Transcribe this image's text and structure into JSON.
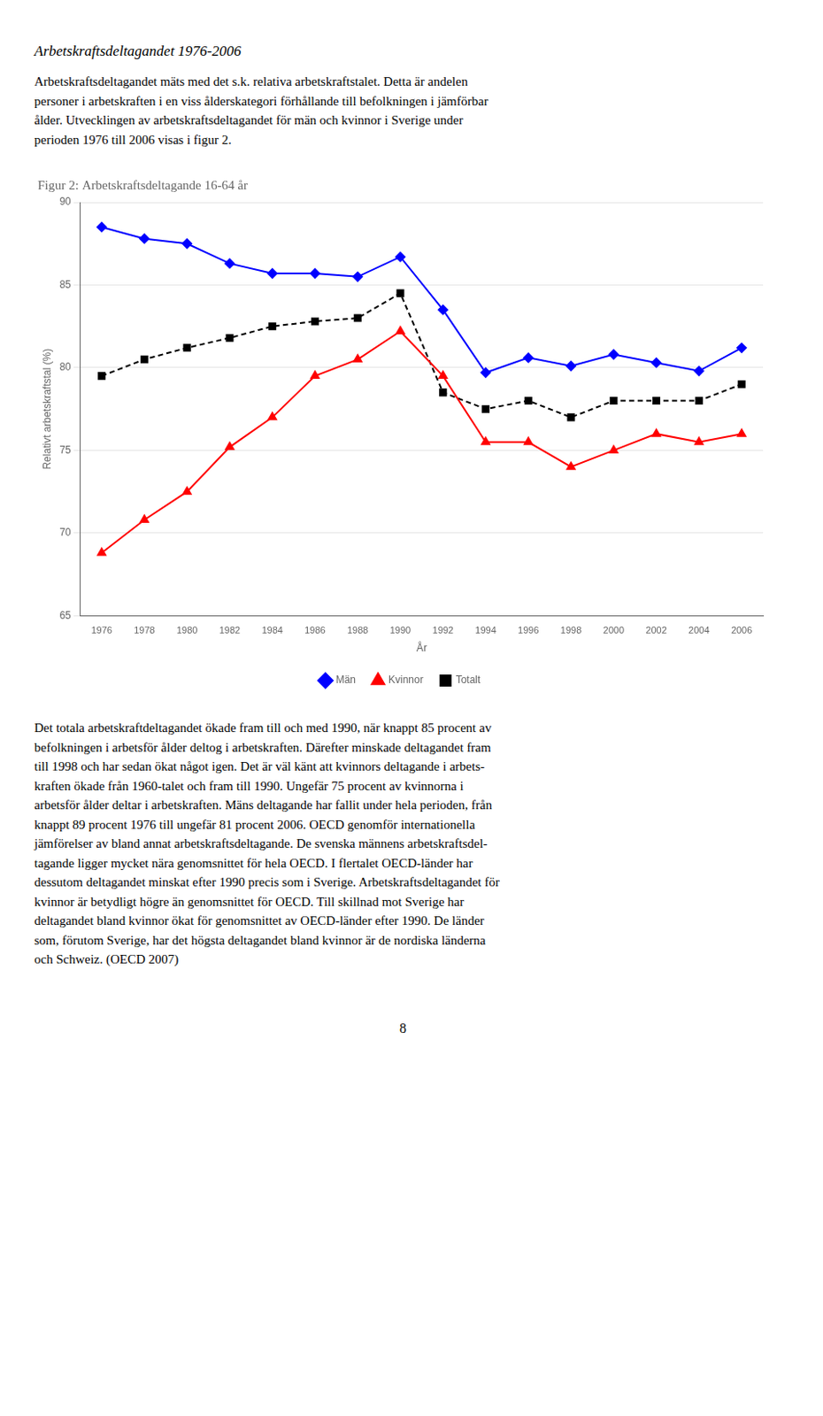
{
  "chart_data": {
    "type": "line",
    "title": "Figur 2: Arbetskraftsdeltagande 16-64 år",
    "xlabel": "År",
    "ylabel": "Relativt arbetskraftstal (%)",
    "x": [
      1976,
      1978,
      1980,
      1982,
      1984,
      1986,
      1988,
      1990,
      1992,
      1994,
      1996,
      1998,
      2000,
      2002,
      2004,
      2006
    ],
    "xlim": [
      1975,
      2007
    ],
    "xticks": [
      1976,
      1978,
      1980,
      1982,
      1984,
      1986,
      1988,
      1990,
      1992,
      1994,
      1996,
      1998,
      2000,
      2002,
      2004,
      2006
    ],
    "ylim": [
      65,
      90
    ],
    "yticks": [
      65,
      70,
      75,
      80,
      85,
      90
    ],
    "grid": "y",
    "legend": "bottom",
    "series": [
      {
        "name": "Män",
        "color": "blue",
        "marker": "diamond",
        "line_style": "solid",
        "values": [
          88.5,
          87.8,
          87.5,
          86.3,
          85.7,
          85.7,
          85.5,
          86.7,
          83.5,
          79.7,
          80.6,
          80.1,
          80.8,
          80.3,
          79.8,
          81.2
        ]
      },
      {
        "name": "Kvinnor",
        "color": "red",
        "marker": "triangle",
        "line_style": "solid",
        "values": [
          68.8,
          70.8,
          72.5,
          75.2,
          77.0,
          79.5,
          80.5,
          82.2,
          79.5,
          75.5,
          75.5,
          74.0,
          75.0,
          76.0,
          75.5,
          76.0
        ]
      },
      {
        "name": "Totalt",
        "color": "black",
        "marker": "square",
        "line_style": "dashed",
        "values": [
          79.5,
          80.5,
          81.2,
          81.8,
          82.5,
          82.8,
          83.0,
          84.5,
          78.5,
          77.5,
          78.0,
          77.0,
          78.0,
          78.0,
          78.0,
          79.0
        ]
      }
    ],
    "annotations": [
      "Arbetskraftsdeltagandet 1976-2006",
      "Arbetskraftsdeltagandet mäts med det s.k. relativa arbetskraftstalet. Detta är andelen\npersoner i arbetskraften i en viss ålderskategori förhållande till befolkningen i jämförbar\nålder.  Utvecklingen av arbetskraftsdeltagandet för män och kvinnor i Sverige under\nperioden 1976 till 2006 visas i figur 2.",
      "Det totala arbetskraftdeltagandet ökade fram till och med 1990, när knappt 85 procent av\nbefolkningen i arbetsför ålder deltog i arbetskraften. Därefter minskade deltagandet fram\ntill 1998 och har sedan ökat något igen. Det är väl känt att kvinnors deltagande i arbets-\nkraften ökade från 1960-talet och fram till 1990. Ungefär 75 procent av kvinnorna i\narbetsför ålder deltar i arbetskraften. Mäns deltagande har fallit under hela perioden, från\nknappt 89 procent 1976 till ungefär 81 procent 2006.  OECD genomför internationella\njämförelser av bland annat arbetskraftsdeltagande. De svenska männens arbetskraftsdel-\ntagande ligger mycket nära genomsnittet för hela OECD. I flertalet OECD-länder har\ndessutom deltagandet minskat efter 1990 precis som i Sverige. Arbetskraftsdeltagandet för\nkvinnor är betydligt högre än genomsnittet för OECD. Till skillnad mot Sverige har\ndeltagandet bland kvinnor ökat för genomsnittet av OECD-länder efter 1990. De länder\nsom, förutom Sverige, har det högsta deltagandet bland kvinnor är de nordiska länderna\noch Schweiz. (OECD 2007)",
      "8"
    ]
  }
}
